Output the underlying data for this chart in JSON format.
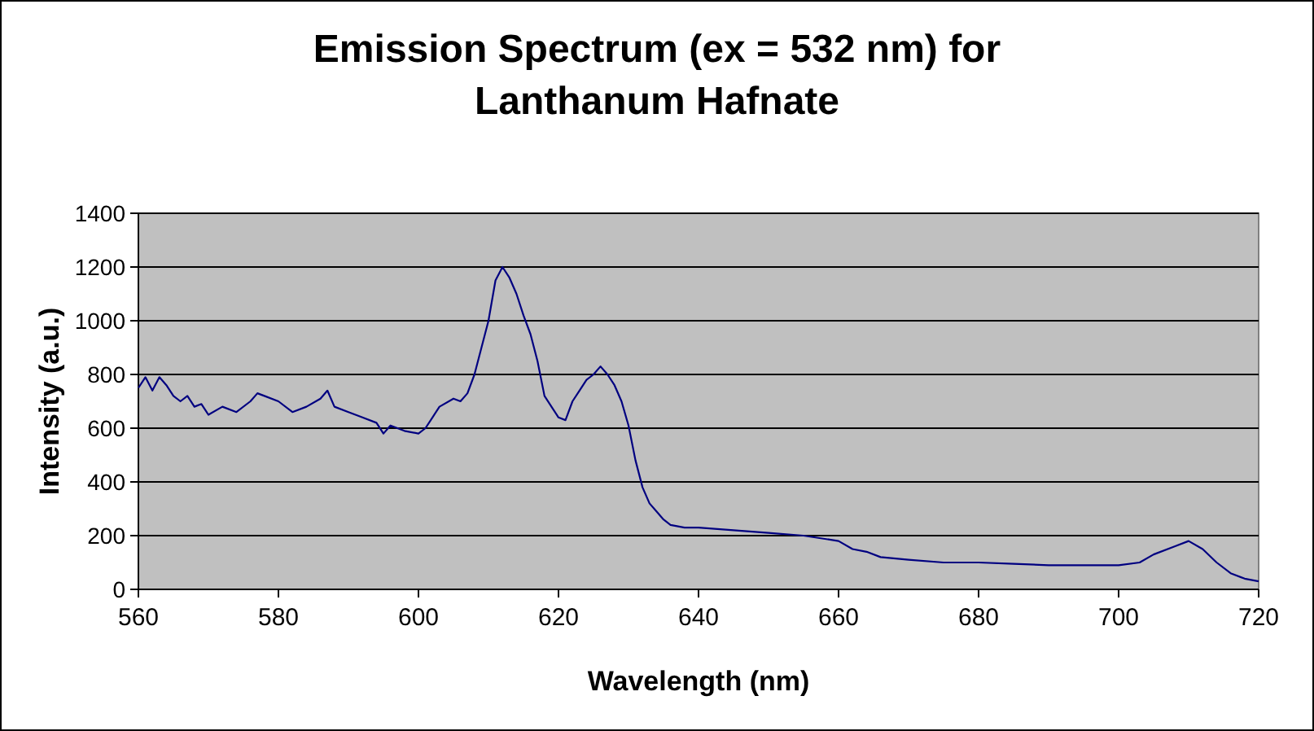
{
  "chart_data": {
    "type": "line",
    "title": "Emission Spectrum (ex = 532 nm) for\nLanthanum Hafnate",
    "xlabel": "Wavelength (nm)",
    "ylabel": "Intensity (a.u.)",
    "x": [
      560,
      561,
      562,
      563,
      564,
      565,
      566,
      567,
      568,
      569,
      570,
      572,
      574,
      576,
      577,
      578,
      580,
      582,
      584,
      586,
      587,
      588,
      590,
      592,
      594,
      595,
      596,
      598,
      600,
      601,
      602,
      603,
      605,
      606,
      607,
      608,
      609,
      610,
      611,
      612,
      613,
      614,
      615,
      616,
      617,
      618,
      619,
      620,
      621,
      622,
      623,
      624,
      625,
      626,
      627,
      628,
      629,
      630,
      631,
      632,
      633,
      634,
      635,
      636,
      638,
      640,
      645,
      650,
      655,
      660,
      662,
      664,
      666,
      670,
      675,
      680,
      685,
      690,
      695,
      700,
      703,
      705,
      708,
      710,
      712,
      714,
      716,
      718,
      720
    ],
    "series": [
      {
        "color": "#000080",
        "values": [
          750,
          790,
          740,
          790,
          760,
          720,
          700,
          720,
          680,
          690,
          650,
          680,
          660,
          700,
          730,
          720,
          700,
          660,
          680,
          710,
          740,
          680,
          660,
          640,
          620,
          580,
          610,
          590,
          580,
          600,
          640,
          680,
          710,
          700,
          730,
          800,
          900,
          1000,
          1150,
          1200,
          1160,
          1100,
          1020,
          950,
          850,
          720,
          680,
          640,
          630,
          700,
          740,
          780,
          800,
          830,
          800,
          760,
          700,
          610,
          480,
          380,
          320,
          290,
          260,
          240,
          230,
          230,
          220,
          210,
          200,
          180,
          150,
          140,
          120,
          110,
          100,
          100,
          95,
          90,
          90,
          90,
          100,
          130,
          160,
          180,
          150,
          100,
          60,
          40,
          30
        ]
      }
    ],
    "xlim": [
      560,
      720
    ],
    "xticks": [
      560,
      580,
      600,
      620,
      640,
      660,
      680,
      700,
      720
    ],
    "ylim": [
      0,
      1400
    ],
    "yticks": [
      0,
      200,
      400,
      600,
      800,
      1000,
      1200,
      1400
    ],
    "grid": "y",
    "marker": "none",
    "line_style": "solid"
  }
}
